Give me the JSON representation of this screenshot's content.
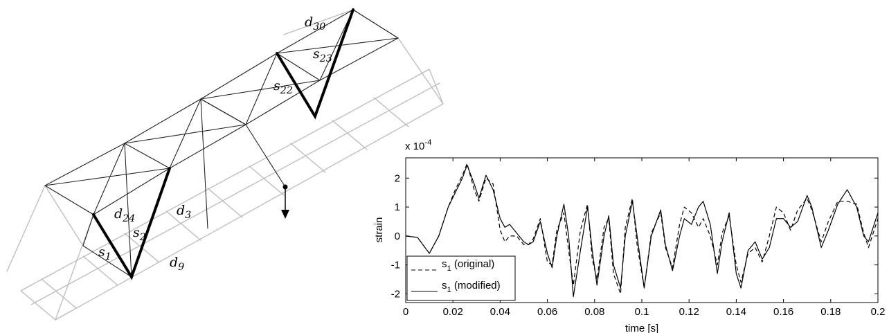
{
  "diagram": {
    "labels": [
      "d30",
      "s23",
      "s22",
      "d24",
      "s2",
      "d3",
      "s1",
      "d9"
    ]
  },
  "chart_data": {
    "type": "line",
    "y_multiplier": "x 10-4",
    "xlabel": "time [s]",
    "ylabel": "strain",
    "xlim": [
      0,
      0.2
    ],
    "ylim": [
      -2.3,
      2.7
    ],
    "xticks": [
      0,
      0.02,
      0.04,
      0.06,
      0.08,
      0.1,
      0.12,
      0.14,
      0.16,
      0.18,
      0.2
    ],
    "yticks": [
      -2,
      -1,
      0,
      1,
      2
    ],
    "legend": "lower left",
    "x": [
      0,
      0.005,
      0.01,
      0.014,
      0.018,
      0.021,
      0.024,
      0.026,
      0.029,
      0.031,
      0.034,
      0.037,
      0.04,
      0.042,
      0.044,
      0.047,
      0.05,
      0.052,
      0.054,
      0.057,
      0.06,
      0.062,
      0.064,
      0.067,
      0.069,
      0.071,
      0.074,
      0.077,
      0.079,
      0.081,
      0.084,
      0.086,
      0.088,
      0.091,
      0.093,
      0.096,
      0.098,
      0.101,
      0.104,
      0.108,
      0.11,
      0.113,
      0.116,
      0.118,
      0.121,
      0.124,
      0.126,
      0.129,
      0.132,
      0.134,
      0.137,
      0.14,
      0.142,
      0.145,
      0.148,
      0.151,
      0.154,
      0.157,
      0.16,
      0.163,
      0.166,
      0.17,
      0.172,
      0.176,
      0.179,
      0.183,
      0.187,
      0.191,
      0.194,
      0.196,
      0.2
    ],
    "series": [
      {
        "name": "s1 (original)",
        "color": "#000000",
        "dash": "6 4",
        "values": [
          0,
          -0.05,
          -0.6,
          0,
          1.0,
          1.6,
          2.1,
          2.5,
          1.6,
          1.2,
          2.0,
          1.8,
          0.2,
          -0.2,
          0.0,
          0.0,
          -0.3,
          -0.3,
          -0.1,
          0.6,
          -0.9,
          -1.0,
          0.2,
          0.8,
          -0.5,
          -1.7,
          0.2,
          1.1,
          -0.8,
          -1.5,
          0.3,
          0.6,
          -1.3,
          -2.0,
          0.3,
          1.3,
          -0.3,
          -1.8,
          0.1,
          0.8,
          -0.4,
          -1.1,
          0.4,
          1.0,
          0.8,
          0.3,
          0.6,
          0.0,
          -1.0,
          0.1,
          0.7,
          -1.0,
          -1.6,
          -0.6,
          -0.4,
          -0.9,
          0.0,
          1.0,
          0.8,
          0.2,
          0.9,
          1.3,
          0.9,
          -0.2,
          0.5,
          1.2,
          1.2,
          1.1,
          0.1,
          -0.4,
          0.6
        ]
      },
      {
        "name": "s1 (modified)",
        "color": "#000000",
        "dash": "none",
        "values": [
          0,
          -0.05,
          -0.6,
          0,
          1.0,
          1.5,
          2.0,
          2.45,
          1.8,
          1.3,
          2.1,
          1.6,
          0.6,
          0.3,
          0.4,
          0.1,
          -0.2,
          -0.3,
          -0.2,
          0.5,
          -0.6,
          -1.1,
          0,
          1.1,
          0,
          -2.1,
          -0.5,
          1.0,
          -0.5,
          -1.7,
          0,
          0.7,
          -1.0,
          -1.8,
          0,
          1.2,
          0,
          -1.8,
          0,
          0.9,
          -0.3,
          -1.2,
          0,
          0.6,
          0.4,
          1.0,
          1.2,
          0.4,
          -1.3,
          -0.2,
          0.8,
          -1.3,
          -1.8,
          -0.5,
          -0.2,
          -0.8,
          -0.4,
          0.6,
          0.6,
          0.3,
          0.5,
          1.4,
          1.0,
          -0.4,
          0.2,
          1.1,
          1.6,
          1.0,
          0,
          -0.2,
          0.8
        ]
      }
    ]
  }
}
